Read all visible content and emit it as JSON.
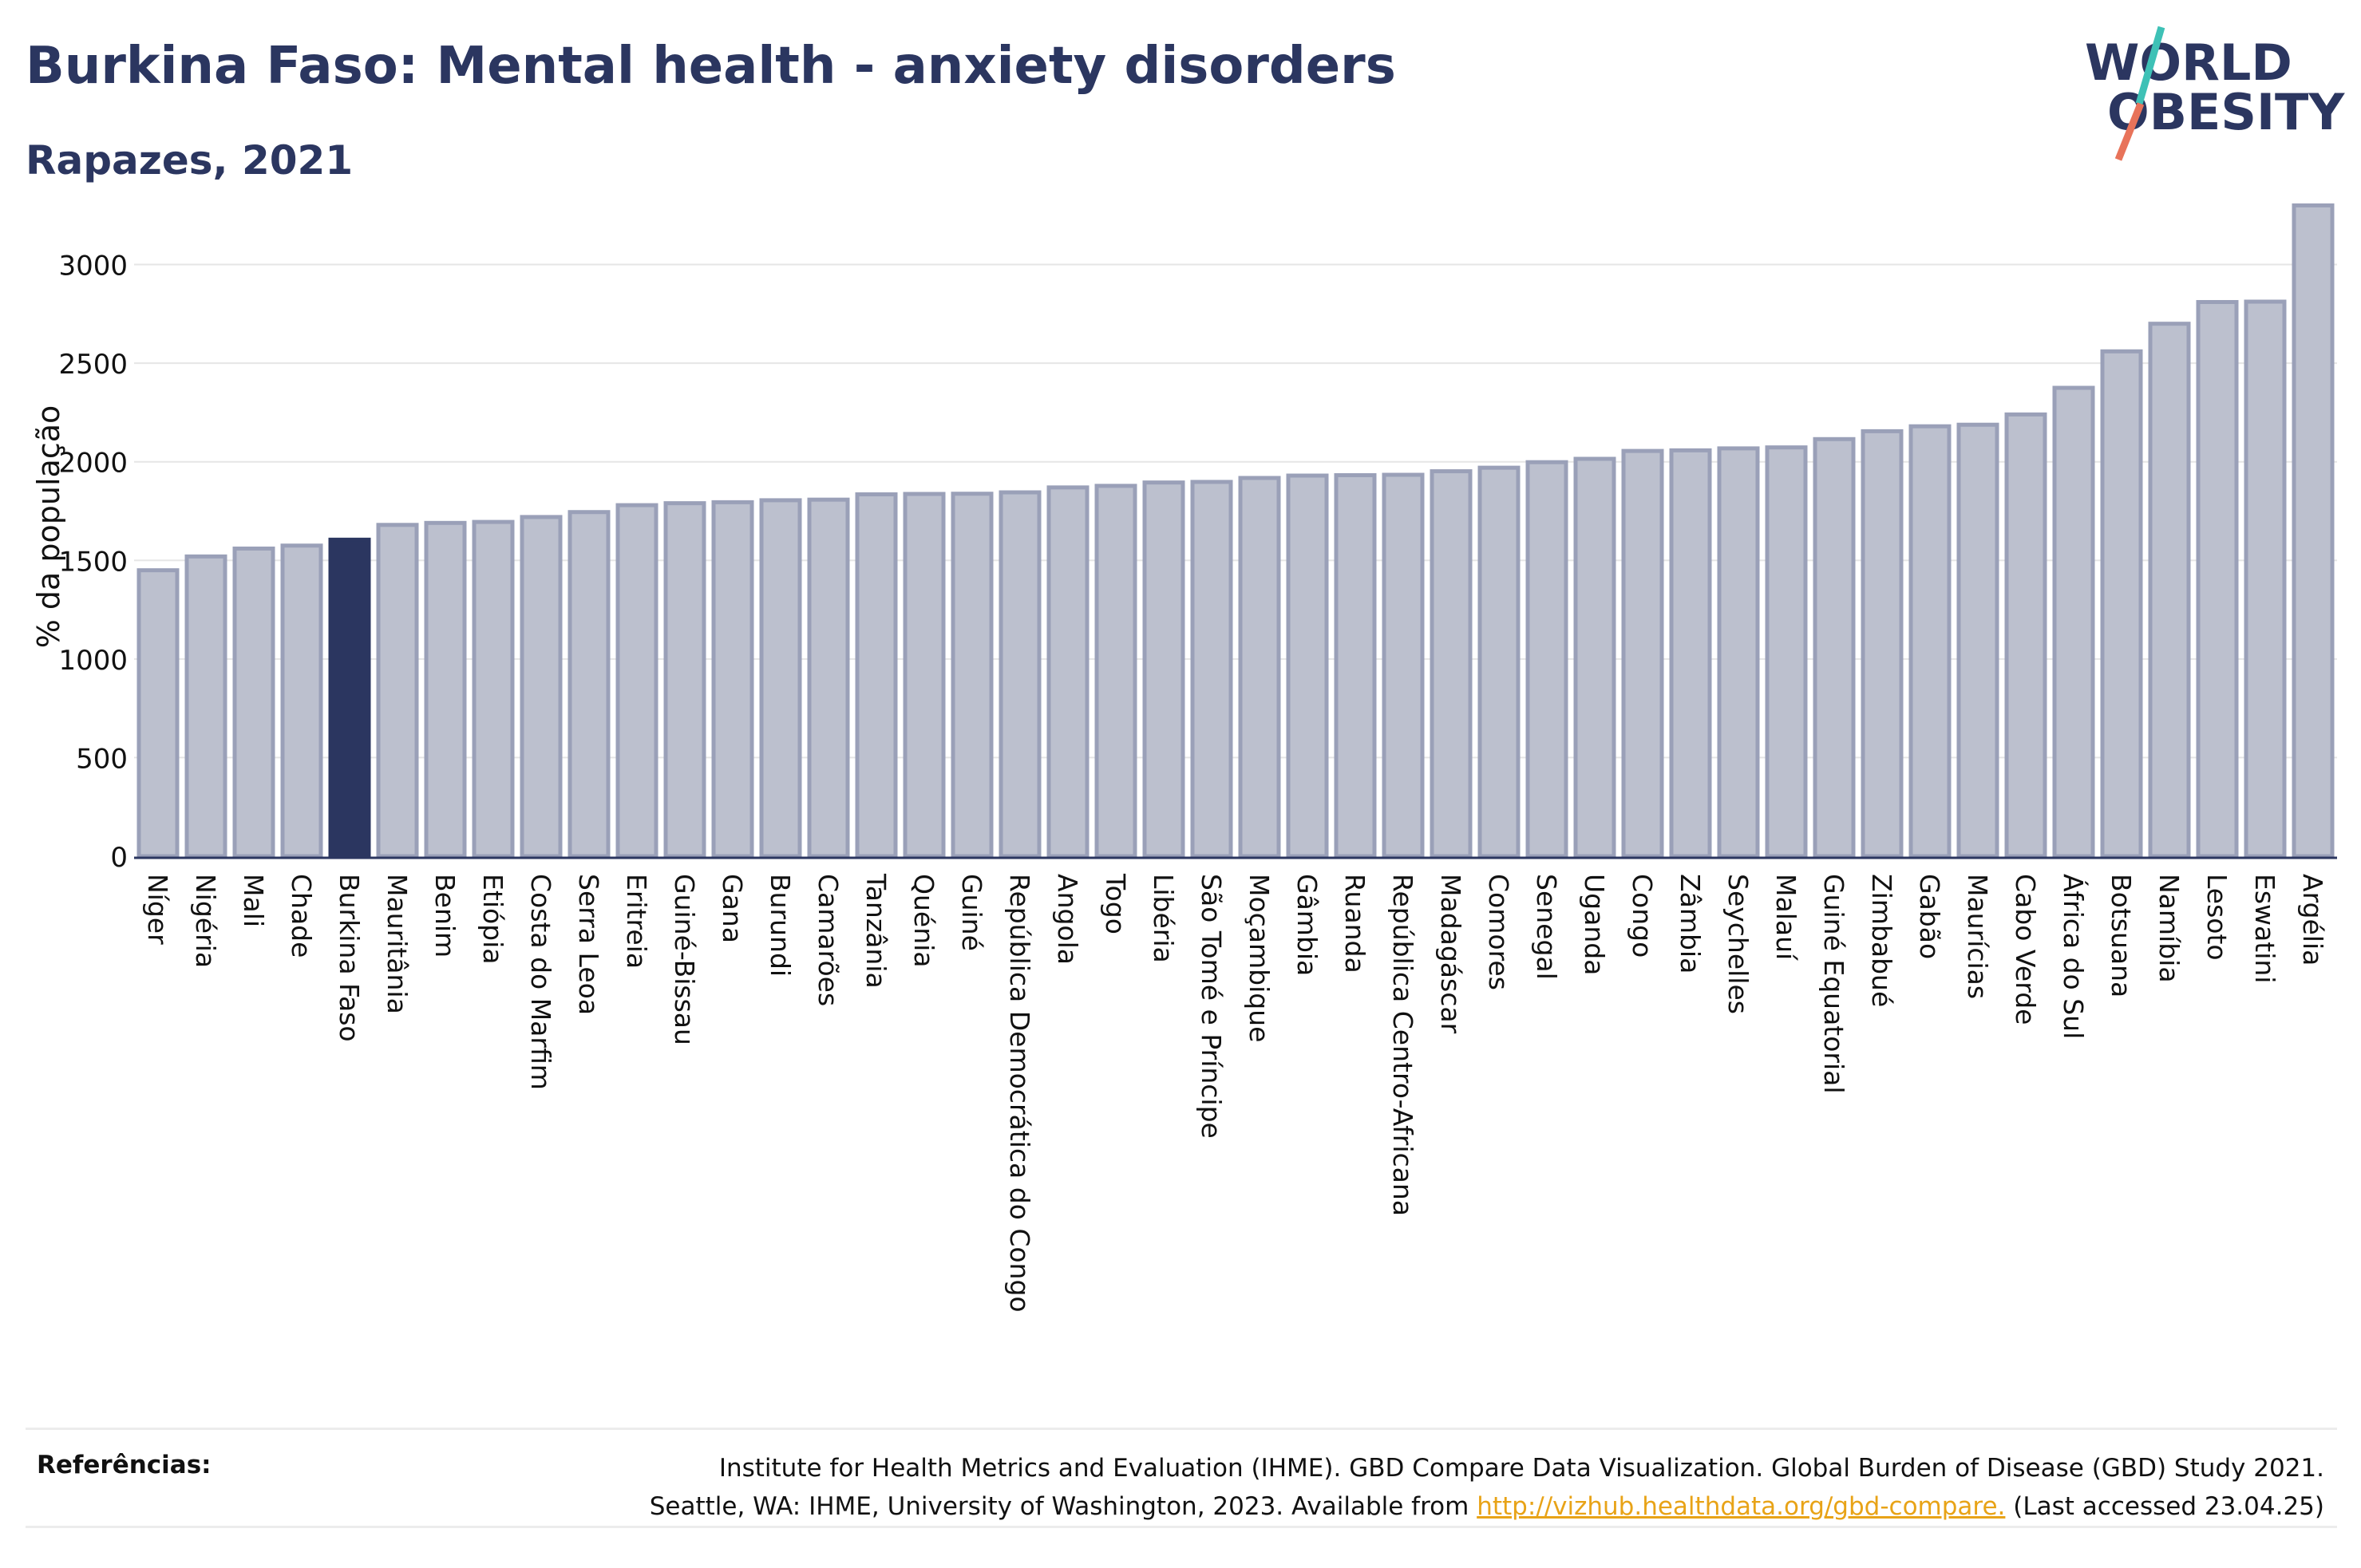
{
  "title": "Burkina Faso: Mental health - anxiety disorders",
  "subtitle": "Rapazes, 2021",
  "logo": {
    "line1": "WORLD",
    "line2": "OBESITY"
  },
  "colors": {
    "highlight_bar": "#2b3660",
    "bar_fill": "#bcc0ce",
    "bar_stroke": "#9aa0b8",
    "title": "#2b3660",
    "logo_teal": "#3ec1b6",
    "logo_coral": "#e8735a",
    "link": "#e8a317"
  },
  "chart_data": {
    "type": "bar",
    "ylabel": "% da população",
    "ylim": [
      0,
      3330
    ],
    "yticks": [
      0,
      500,
      1000,
      1500,
      2000,
      2500,
      3000
    ],
    "grid": true,
    "highlight": "Burkina Faso",
    "categories": [
      "Níger",
      "Nigéria",
      "Mali",
      "Chade",
      "Burkina Faso",
      "Mauritânia",
      "Benim",
      "Etiópia",
      "Costa do Marfim",
      "Serra Leoa",
      "Eritreia",
      "Guiné-Bissau",
      "Gana",
      "Burundi",
      "Camarões",
      "Tanzânia",
      "Quénia",
      "Guiné",
      "República Democrática do Congo",
      "Angola",
      "Togo",
      "Libéria",
      "São Tomé e Príncipe",
      "Moçambique",
      "Gâmbia",
      "Ruanda",
      "República Centro-Africana",
      "Madagáscar",
      "Comores",
      "Senegal",
      "Uganda",
      "Congo",
      "Zâmbia",
      "Seychelles",
      "Malauí",
      "Guiné Equatorial",
      "Zimbabué",
      "Gabão",
      "Maurícias",
      "Cabo Verde",
      "África do Sul",
      "Botsuana",
      "Namíbia",
      "Lesoto",
      "Eswatini",
      "Argélia"
    ],
    "values": [
      1450,
      1520,
      1560,
      1575,
      1605,
      1680,
      1690,
      1695,
      1720,
      1745,
      1780,
      1790,
      1795,
      1805,
      1808,
      1835,
      1837,
      1838,
      1845,
      1870,
      1878,
      1895,
      1898,
      1918,
      1930,
      1932,
      1934,
      1952,
      1970,
      1998,
      2015,
      2055,
      2058,
      2068,
      2073,
      2115,
      2155,
      2180,
      2188,
      2240,
      2375,
      2560,
      2700,
      2810,
      2812,
      3300
    ]
  },
  "references": {
    "label": "Referências:",
    "line1": "Institute for Health Metrics and Evaluation (IHME). GBD Compare Data Visualization. Global Burden of Disease (GBD) Study 2021.",
    "line2_prefix": "Seattle, WA: IHME, University of Washington, 2023. Available from ",
    "link_text": "http://vizhub.healthdata.org/gbd-compare.",
    "line2_suffix": " (Last accessed 23.04.25)"
  }
}
